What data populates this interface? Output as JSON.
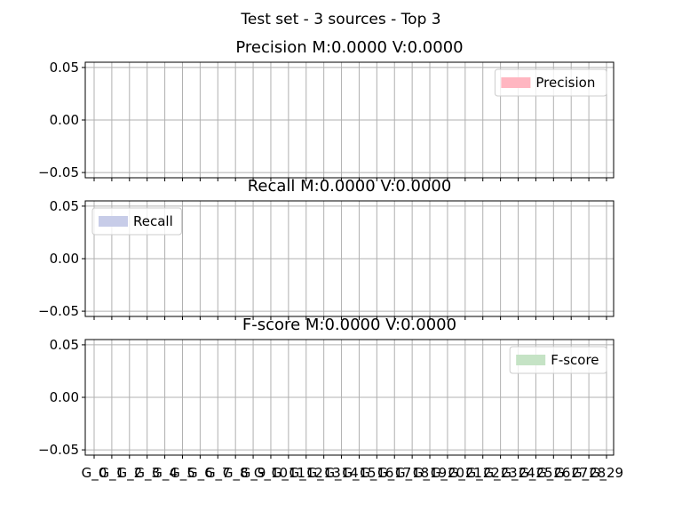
{
  "figure": {
    "suptitle": "Test set - 3 sources - Top 3"
  },
  "chart_data": [
    {
      "type": "bar",
      "title": "Precision M:0.0000 V:0.0000",
      "categories": [
        "G_0",
        "G_1",
        "G_2",
        "G_3",
        "G_4",
        "G_5",
        "G_6",
        "G_7",
        "G_8",
        "G_9",
        "G_10",
        "G_11",
        "G_12",
        "G_13",
        "G_14",
        "G_15",
        "G_16",
        "G_17",
        "G_18",
        "G_19",
        "G_20",
        "G_21",
        "G_22",
        "G_23",
        "G_24",
        "G_25",
        "G_26",
        "G_27",
        "G_28",
        "G_29"
      ],
      "series": [
        {
          "name": "Precision",
          "color": "#ffb6c1",
          "values": [
            0,
            0,
            0,
            0,
            0,
            0,
            0,
            0,
            0,
            0,
            0,
            0,
            0,
            0,
            0,
            0,
            0,
            0,
            0,
            0,
            0,
            0,
            0,
            0,
            0,
            0,
            0,
            0,
            0,
            0
          ]
        }
      ],
      "ylim": [
        -0.055,
        0.055
      ],
      "yticks": [
        "0.05",
        "0.00",
        "−0.05"
      ],
      "grid": true,
      "legend": "upper right",
      "xticklabels_visible": false
    },
    {
      "type": "bar",
      "title": "Recall M:0.0000 V:0.0000",
      "categories": [
        "G_0",
        "G_1",
        "G_2",
        "G_3",
        "G_4",
        "G_5",
        "G_6",
        "G_7",
        "G_8",
        "G_9",
        "G_10",
        "G_11",
        "G_12",
        "G_13",
        "G_14",
        "G_15",
        "G_16",
        "G_17",
        "G_18",
        "G_19",
        "G_20",
        "G_21",
        "G_22",
        "G_23",
        "G_24",
        "G_25",
        "G_26",
        "G_27",
        "G_28",
        "G_29"
      ],
      "series": [
        {
          "name": "Recall",
          "color": "#c7cce8",
          "values": [
            0,
            0,
            0,
            0,
            0,
            0,
            0,
            0,
            0,
            0,
            0,
            0,
            0,
            0,
            0,
            0,
            0,
            0,
            0,
            0,
            0,
            0,
            0,
            0,
            0,
            0,
            0,
            0,
            0,
            0
          ]
        }
      ],
      "ylim": [
        -0.055,
        0.055
      ],
      "yticks": [
        "0.05",
        "0.00",
        "−0.05"
      ],
      "grid": true,
      "legend": "upper left",
      "xticklabels_visible": false
    },
    {
      "type": "bar",
      "title": "F-score M:0.0000 V:0.0000",
      "categories": [
        "G_0",
        "G_1",
        "G_2",
        "G_3",
        "G_4",
        "G_5",
        "G_6",
        "G_7",
        "G_8",
        "G_9",
        "G_10",
        "G_11",
        "G_12",
        "G_13",
        "G_14",
        "G_15",
        "G_16",
        "G_17",
        "G_18",
        "G_19",
        "G_20",
        "G_21",
        "G_22",
        "G_23",
        "G_24",
        "G_25",
        "G_26",
        "G_27",
        "G_28",
        "G_29"
      ],
      "series": [
        {
          "name": "F-score",
          "color": "#c5e3c5",
          "values": [
            0,
            0,
            0,
            0,
            0,
            0,
            0,
            0,
            0,
            0,
            0,
            0,
            0,
            0,
            0,
            0,
            0,
            0,
            0,
            0,
            0,
            0,
            0,
            0,
            0,
            0,
            0,
            0,
            0,
            0
          ]
        }
      ],
      "ylim": [
        -0.055,
        0.055
      ],
      "yticks": [
        "0.05",
        "0.00",
        "−0.05"
      ],
      "grid": true,
      "legend": "upper right",
      "xticklabels_visible": true
    }
  ]
}
